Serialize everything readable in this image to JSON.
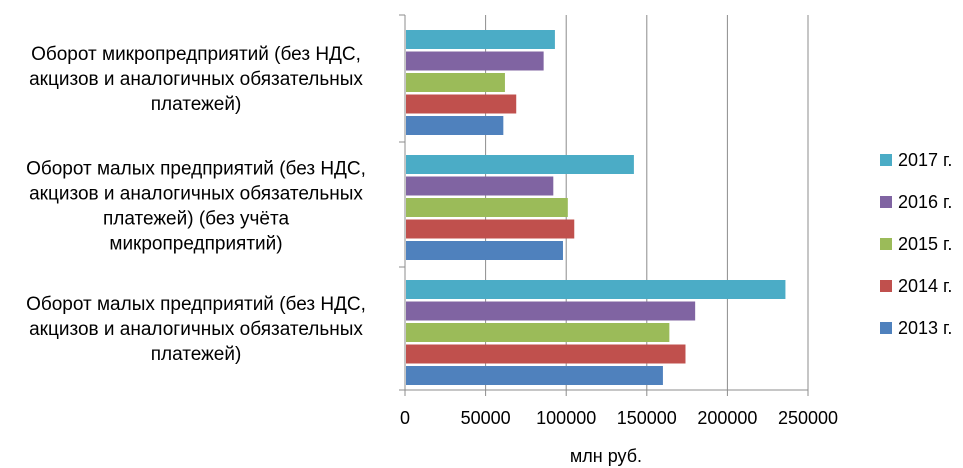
{
  "chart_data": {
    "type": "bar",
    "orientation": "horizontal",
    "categories": [
      [
        "Оборот микропредприятий (без НДС,",
        "акцизов и аналогичных обязательных",
        "платежей)"
      ],
      [
        "Оборот малых предприятий (без НДС,",
        "акцизов и аналогичных обязательных",
        "платежей) (без учёта",
        "микропредприятий)"
      ],
      [
        "Оборот малых предприятий (без НДС,",
        "акцизов и аналогичных обязательных",
        "платежей)"
      ]
    ],
    "series": [
      {
        "name": "2013 г.",
        "color": "#4F81BD",
        "values": [
          61000,
          98000,
          160000
        ]
      },
      {
        "name": "2014 г.",
        "color": "#C0504D",
        "values": [
          69000,
          105000,
          174000
        ]
      },
      {
        "name": "2015 г.",
        "color": "#9BBB59",
        "values": [
          62000,
          101000,
          164000
        ]
      },
      {
        "name": "2016 г.",
        "color": "#8064A2",
        "values": [
          86000,
          92000,
          180000
        ]
      },
      {
        "name": "2017 г.",
        "color": "#4BACC6",
        "values": [
          93000,
          142000,
          236000
        ]
      }
    ],
    "xlim": [
      0,
      250000
    ],
    "xticks": [
      "0",
      "50000",
      "100000",
      "150000",
      "200000",
      "250000"
    ],
    "xlabel": "млн  руб.",
    "grid": true,
    "legend_position": "right"
  }
}
